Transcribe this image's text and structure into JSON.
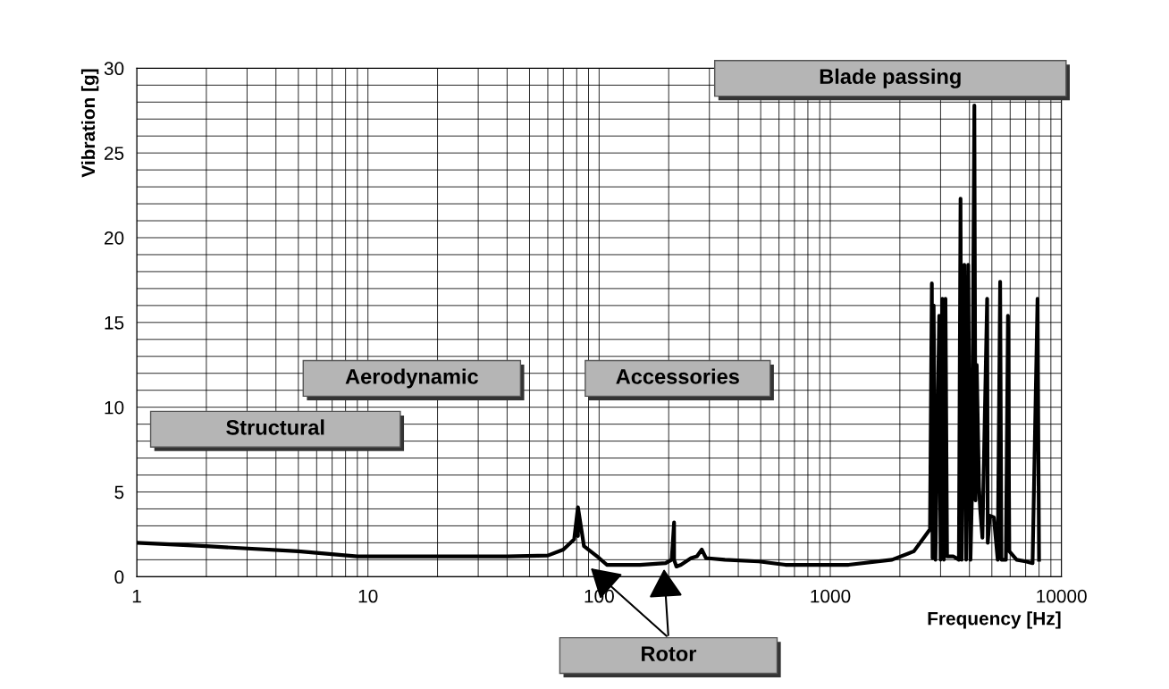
{
  "chart_data": {
    "type": "line",
    "xlabel": "Frequency [Hz]",
    "ylabel": "Vibration [g]",
    "series": [
      {
        "color": "#000000",
        "x": [
          1,
          2,
          5,
          9,
          20,
          40,
          60,
          70,
          78,
          81,
          81,
          81,
          86,
          100,
          108,
          150,
          194,
          206,
          211,
          211,
          216,
          226,
          250,
          265,
          278,
          290,
          350,
          490,
          640,
          1200,
          1850,
          2300,
          2700,
          2750,
          2770,
          2800,
          2850,
          2960,
          3000,
          3050,
          3100,
          3150,
          3200,
          3400,
          3600,
          3660,
          3700,
          3800,
          3870,
          3950,
          4040,
          4100,
          4200,
          4250,
          4300,
          4400,
          4450,
          4550,
          4770,
          4800,
          4900,
          5100,
          5300,
          5430,
          5500,
          5750,
          5870,
          5950,
          6400,
          7000,
          7500,
          7880,
          8000
        ],
        "values": [
          2.0,
          1.8,
          1.5,
          1.2,
          1.2,
          1.2,
          1.25,
          1.6,
          2.2,
          4.1,
          2.4,
          4.1,
          1.8,
          1.1,
          0.7,
          0.7,
          0.8,
          1.0,
          3.2,
          1.0,
          0.6,
          0.7,
          1.1,
          1.2,
          1.6,
          1.1,
          1.0,
          0.9,
          0.7,
          0.7,
          1.0,
          1.5,
          2.8,
          17.3,
          1.1,
          16.0,
          1.0,
          15.4,
          1.0,
          16.4,
          1.0,
          16.4,
          1.2,
          1.2,
          1.0,
          22.3,
          1.0,
          18.4,
          1.0,
          18.4,
          1.0,
          4.8,
          27.8,
          4.5,
          12.5,
          5.3,
          4.0,
          2.3,
          16.4,
          2.0,
          3.6,
          3.5,
          1.0,
          17.4,
          1.0,
          1.0,
          15.4,
          1.5,
          1.0,
          0.9,
          0.8,
          16.4,
          1.0
        ]
      }
    ],
    "xlim": [
      1,
      10000
    ],
    "xticks": [
      1,
      10,
      100,
      1000,
      10000
    ],
    "ylim": [
      0,
      30
    ],
    "yticks": [
      0,
      5,
      10,
      15,
      20,
      25,
      30
    ],
    "log": "x",
    "grid": true,
    "line_style": "solid",
    "marker": "none",
    "annotations": [
      "Structural",
      "Aerodynamic",
      "Accessories",
      "Blade passing",
      "Rotor"
    ]
  }
}
